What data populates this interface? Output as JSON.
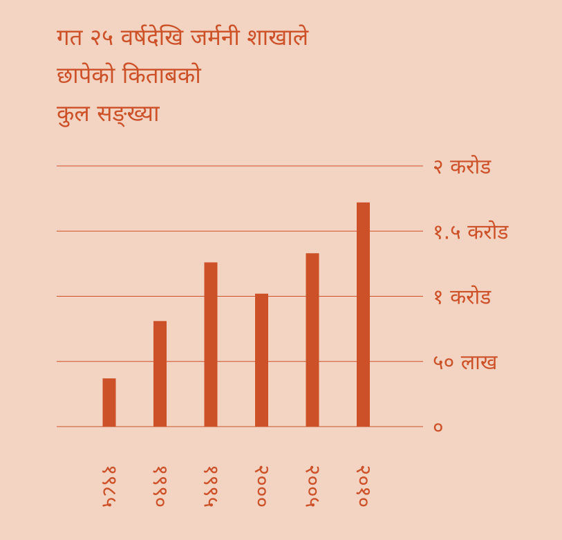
{
  "title_lines": [
    "गत २५ वर्षदेखि जर्मनी शाखाले",
    "छापेको किताबको",
    "कुल सङ्ख्या"
  ],
  "colors": {
    "background": "#f3d3c1",
    "accent": "#cd5128",
    "gridline": "#cd5128"
  },
  "chart_data": {
    "type": "bar",
    "title": "गत २५ वर्षदेखि जर्मनी शाखाले छापेको किताबको कुल सङ्ख्या",
    "categories": [
      "१९८५",
      "१९९०",
      "१९९५",
      "२०००",
      "२००५",
      "२०१०"
    ],
    "values": [
      3700000,
      8100000,
      12600000,
      10200000,
      13300000,
      17200000
    ],
    "ylim": [
      0,
      20000000
    ],
    "yticks": [
      {
        "value": 0,
        "label": "०"
      },
      {
        "value": 5000000,
        "label": "५० लाख"
      },
      {
        "value": 10000000,
        "label": "१ करोड"
      },
      {
        "value": 15000000,
        "label": "१.५ करोड"
      },
      {
        "value": 20000000,
        "label": "२ करोड"
      }
    ],
    "grid": true,
    "axis_position": "right",
    "category_label_rotation": "vertical"
  }
}
